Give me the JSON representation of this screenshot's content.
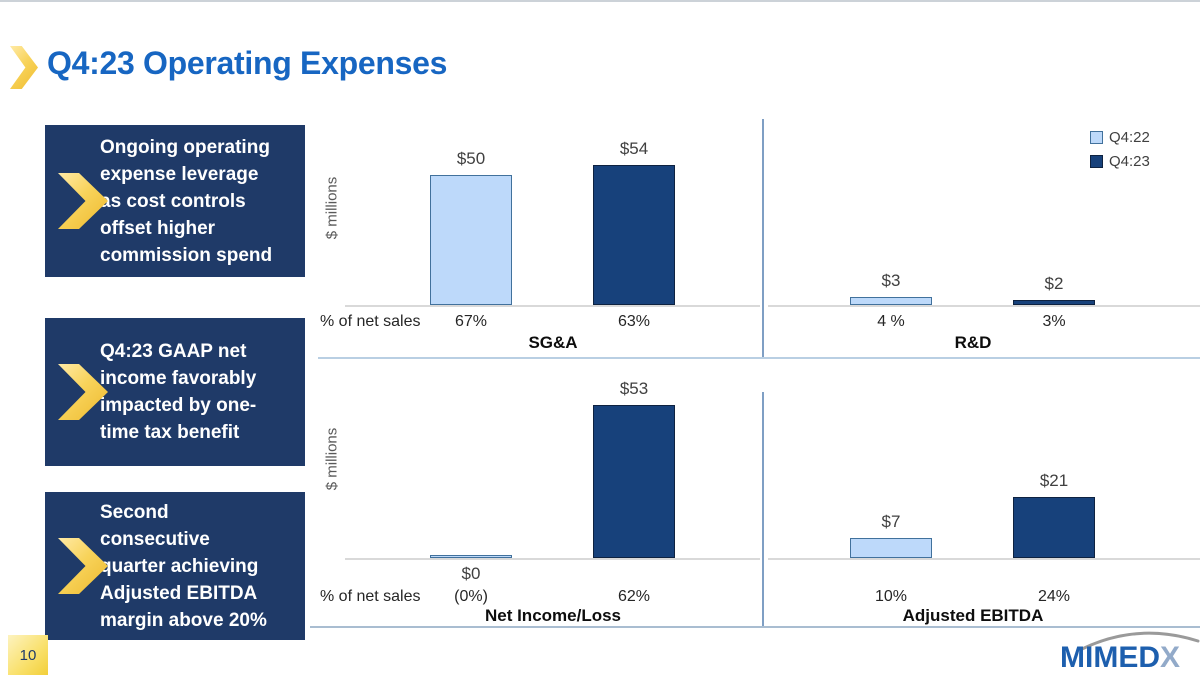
{
  "slide": {
    "title": "Q4:23 Operating Expenses",
    "page_number": "10",
    "callouts": [
      {
        "text": "Ongoing operating\nexpense leverage\nas cost controls\noffset higher\ncommission spend"
      },
      {
        "text": "Q4:23 GAAP net\nincome favorably\nimpacted by one-\ntime tax benefit"
      },
      {
        "text": "Second\nconsecutive\nquarter achieving\nAdjusted EBITDA\nmargin above 20%"
      }
    ],
    "logo": {
      "part1": "MIMED",
      "part2": "X"
    }
  },
  "legend": {
    "position": "top-right",
    "items": [
      {
        "label": "Q4:22",
        "fill": "#BDD9FA",
        "border": "#41719C"
      },
      {
        "label": "Q4:23",
        "fill": "#17417B",
        "border": "#0E2240"
      }
    ]
  },
  "colors": {
    "title_blue": "#1766C2",
    "callout_navy": "#1F3A68",
    "chevron_gold": "#F2C331",
    "bar_light": "#BDD9FA",
    "bar_light_border": "#41719C",
    "bar_dark": "#17417B",
    "bar_dark_border": "#0E2240",
    "baseline_gray": "#D9D9D9"
  },
  "chart_data": [
    {
      "type": "bar",
      "title": "SG&A",
      "ylabel": "$ millions",
      "row_label": "% of net sales",
      "categories": [
        "Q4:22",
        "Q4:23"
      ],
      "series": [
        {
          "name": "Q4:22",
          "value": 50,
          "value_label": "$50",
          "pct_label": "67%"
        },
        {
          "name": "Q4:23",
          "value": 54,
          "value_label": "$54",
          "pct_label": "63%"
        }
      ]
    },
    {
      "type": "bar",
      "title": "R&D",
      "ylabel": "",
      "row_label": "",
      "categories": [
        "Q4:22",
        "Q4:23"
      ],
      "series": [
        {
          "name": "Q4:22",
          "value": 3,
          "value_label": "$3",
          "pct_label": "4 %"
        },
        {
          "name": "Q4:23",
          "value": 2,
          "value_label": "$2",
          "pct_label": "3%"
        }
      ]
    },
    {
      "type": "bar",
      "title": "Net Income/Loss",
      "ylabel": "$ millions",
      "row_label": "% of net sales",
      "categories": [
        "Q4:22",
        "Q4:23"
      ],
      "series": [
        {
          "name": "Q4:22",
          "value": 0,
          "value_label": "$0",
          "pct_label": "(0%)"
        },
        {
          "name": "Q4:23",
          "value": 53,
          "value_label": "$53",
          "pct_label": "62%"
        }
      ]
    },
    {
      "type": "bar",
      "title": "Adjusted EBITDA",
      "ylabel": "",
      "row_label": "",
      "categories": [
        "Q4:22",
        "Q4:23"
      ],
      "series": [
        {
          "name": "Q4:22",
          "value": 7,
          "value_label": "$7",
          "pct_label": "10%"
        },
        {
          "name": "Q4:23",
          "value": 21,
          "value_label": "$21",
          "pct_label": "24%"
        }
      ]
    }
  ]
}
